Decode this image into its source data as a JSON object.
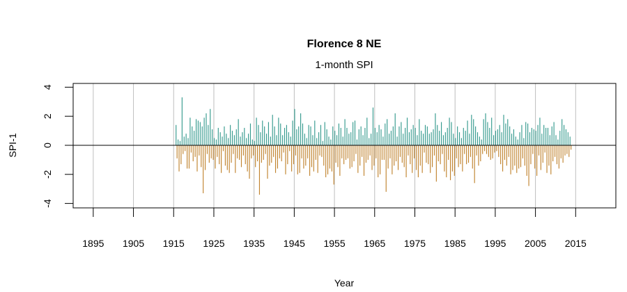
{
  "chart_data": {
    "type": "bar",
    "title": "Florence 8 NE",
    "subtitle": "1-month SPI",
    "xlabel": "Year",
    "ylabel": "SPI-1",
    "xlim": [
      1890,
      2025
    ],
    "ylim": [
      -4.3,
      4.3
    ],
    "x_ticks": [
      "1895",
      "1905",
      "1915",
      "1925",
      "1935",
      "1945",
      "1955",
      "1965",
      "1975",
      "1985",
      "1995",
      "2005",
      "2015"
    ],
    "y_ticks": [
      "-4",
      "-2",
      "0",
      "2",
      "4"
    ],
    "grid": "vertical",
    "colors": {
      "positive": "#359a8e",
      "negative": "#c0832e",
      "grid": "#bebebe",
      "zero_line": "#000000"
    },
    "values_per_year": 4,
    "series_by_year": {
      "1915": [
        0.0,
        0.0,
        1.4,
        -0.9
      ],
      "1916": [
        0.4,
        -1.8,
        0.3,
        -1.3
      ],
      "1917": [
        3.3,
        -0.6,
        0.6,
        -0.4
      ],
      "1918": [
        0.8,
        -1.6,
        0.5,
        -1.6
      ],
      "1919": [
        1.9,
        -0.5,
        1.3,
        -1.1
      ],
      "1920": [
        1.0,
        -0.8,
        1.8,
        -1.8
      ],
      "1921": [
        1.7,
        -0.7,
        1.6,
        -1.5
      ],
      "1922": [
        1.3,
        -3.3,
        1.9,
        -1.7
      ],
      "1923": [
        2.2,
        -0.6,
        1.4,
        -1.2
      ],
      "1924": [
        2.5,
        -0.9,
        1.1,
        -1.0
      ],
      "1925": [
        0.5,
        -1.6,
        0.4,
        -0.8
      ],
      "1926": [
        1.2,
        -1.3,
        0.9,
        -1.9
      ],
      "1927": [
        0.6,
        -0.4,
        1.3,
        -1.4
      ],
      "1928": [
        0.8,
        -1.7,
        0.5,
        -1.9
      ],
      "1929": [
        1.4,
        -1.2,
        1.0,
        -0.6
      ],
      "1930": [
        0.7,
        -1.9,
        1.1,
        -0.9
      ],
      "1931": [
        1.8,
        -1.0,
        0.6,
        -1.5
      ],
      "1932": [
        0.9,
        -0.7,
        1.2,
        -1.3
      ],
      "1933": [
        0.5,
        -1.8,
        0.8,
        -2.3
      ],
      "1934": [
        1.5,
        -0.9,
        0.4,
        -0.7
      ],
      "1935": [
        0.3,
        -1.5,
        1.9,
        -1.1
      ],
      "1936": [
        1.4,
        -3.4,
        0.9,
        -1.2
      ],
      "1937": [
        1.7,
        -1.0,
        1.3,
        -0.6
      ],
      "1938": [
        0.8,
        -2.3,
        1.6,
        -1.4
      ],
      "1939": [
        0.6,
        -1.2,
        2.1,
        -0.8
      ],
      "1940": [
        1.3,
        -1.9,
        0.7,
        -1.6
      ],
      "1941": [
        1.9,
        -0.9,
        1.5,
        -1.1
      ],
      "1942": [
        0.7,
        -0.5,
        1.2,
        -2.0
      ],
      "1943": [
        1.4,
        -1.3,
        0.9,
        -0.4
      ],
      "1944": [
        0.6,
        -1.8,
        1.7,
        -1.3
      ],
      "1945": [
        2.5,
        -0.7,
        1.1,
        -2.0
      ],
      "1946": [
        1.3,
        -1.9,
        2.2,
        -0.9
      ],
      "1947": [
        1.5,
        -1.6,
        0.8,
        -1.4
      ],
      "1948": [
        0.5,
        -0.9,
        1.4,
        -2.1
      ],
      "1949": [
        1.3,
        -1.5,
        0.7,
        -1.8
      ],
      "1950": [
        1.7,
        -1.0,
        0.5,
        -1.9
      ],
      "1951": [
        0.9,
        -0.7,
        1.4,
        -0.8
      ],
      "1952": [
        0.3,
        -1.4,
        1.6,
        -2.2
      ],
      "1953": [
        1.1,
        -2.0,
        0.6,
        -1.6
      ],
      "1954": [
        0.4,
        -1.8,
        1.3,
        -2.7
      ],
      "1955": [
        1.0,
        -1.2,
        0.7,
        -1.5
      ],
      "1956": [
        1.5,
        -2.1,
        1.2,
        -0.9
      ],
      "1957": [
        0.6,
        -1.3,
        1.8,
        -1.0
      ],
      "1958": [
        1.2,
        -0.9,
        0.8,
        -1.6
      ],
      "1959": [
        0.9,
        -1.5,
        1.6,
        -1.1
      ],
      "1960": [
        1.7,
        -0.6,
        0.4,
        -1.9
      ],
      "1961": [
        1.1,
        -1.4,
        1.3,
        -0.8
      ],
      "1962": [
        0.7,
        -2.1,
        1.2,
        -1.2
      ],
      "1963": [
        1.9,
        -1.0,
        0.5,
        -0.7
      ],
      "1964": [
        0.8,
        -1.7,
        2.6,
        -1.4
      ],
      "1965": [
        1.2,
        -0.9,
        0.9,
        -2.2
      ],
      "1966": [
        1.4,
        -2.0,
        1.1,
        -1.0
      ],
      "1967": [
        0.6,
        -1.0,
        1.5,
        -3.2
      ],
      "1968": [
        1.8,
        -1.6,
        0.8,
        -0.9
      ],
      "1969": [
        1.0,
        -2.0,
        1.3,
        -1.4
      ],
      "1970": [
        2.2,
        -1.1,
        0.6,
        -1.7
      ],
      "1971": [
        1.3,
        -0.8,
        1.6,
        -1.2
      ],
      "1972": [
        0.8,
        -1.5,
        1.2,
        -2.2
      ],
      "1973": [
        1.9,
        -0.7,
        0.9,
        -1.3
      ],
      "1974": [
        1.1,
        -1.9,
        1.4,
        -0.9
      ],
      "1975": [
        1.2,
        -1.7,
        0.7,
        -2.2
      ],
      "1976": [
        1.8,
        -1.4,
        1.0,
        -1.9
      ],
      "1977": [
        0.8,
        -0.5,
        1.4,
        -1.2
      ],
      "1978": [
        1.3,
        -1.3,
        0.8,
        -1.9
      ],
      "1979": [
        0.9,
        -1.5,
        1.1,
        -0.7
      ],
      "1980": [
        2.2,
        -2.5,
        1.4,
        -1.1
      ],
      "1981": [
        1.0,
        -1.3,
        1.6,
        -0.6
      ],
      "1982": [
        0.7,
        -1.8,
        0.9,
        -2.2
      ],
      "1983": [
        1.2,
        -1.0,
        1.9,
        -2.4
      ],
      "1984": [
        1.6,
        -1.8,
        0.8,
        -2.1
      ],
      "1985": [
        0.5,
        -0.9,
        1.3,
        -1.5
      ],
      "1986": [
        0.9,
        -1.3,
        0.5,
        -1.8
      ],
      "1987": [
        1.2,
        -0.6,
        1.0,
        -1.3
      ],
      "1988": [
        1.7,
        -1.2,
        0.8,
        -0.8
      ],
      "1989": [
        2.1,
        -1.6,
        1.8,
        -2.6
      ],
      "1990": [
        1.3,
        -0.7,
        0.9,
        -1.4
      ],
      "1991": [
        0.6,
        -1.1,
        0.4,
        -0.6
      ],
      "1992": [
        1.8,
        -0.4,
        2.2,
        -0.6
      ],
      "1993": [
        1.6,
        -0.8,
        1.2,
        -1.0
      ],
      "1994": [
        1.9,
        -0.9,
        0.7,
        -0.5
      ],
      "1995": [
        1.0,
        -0.4,
        1.1,
        -0.8
      ],
      "1996": [
        1.4,
        -1.3,
        0.9,
        -1.8
      ],
      "1997": [
        2.1,
        -1.0,
        1.5,
        -1.4
      ],
      "1998": [
        1.8,
        -0.8,
        1.3,
        -2.0
      ],
      "1999": [
        0.8,
        -1.7,
        1.1,
        -1.4
      ],
      "2000": [
        0.6,
        -1.9,
        0.4,
        -1.6
      ],
      "2001": [
        0.9,
        -1.5,
        1.4,
        -0.9
      ],
      "2002": [
        0.5,
        -1.4,
        1.6,
        -2.1
      ],
      "2003": [
        1.5,
        -2.8,
        0.9,
        -1.3
      ],
      "2004": [
        1.2,
        -0.6,
        1.1,
        -1.6
      ],
      "2005": [
        1.0,
        -2.1,
        1.4,
        -0.7
      ],
      "2006": [
        1.9,
        -1.7,
        0.8,
        -1.2
      ],
      "2007": [
        1.4,
        -0.5,
        1.2,
        -1.9
      ],
      "2008": [
        1.2,
        -1.4,
        0.7,
        -2.0
      ],
      "2009": [
        1.3,
        -1.1,
        1.6,
        -0.8
      ],
      "2010": [
        0.7,
        -1.3,
        0.4,
        -1.6
      ],
      "2011": [
        1.0,
        -0.9,
        1.8,
        -1.2
      ],
      "2012": [
        1.4,
        -0.7,
        1.1,
        -0.6
      ],
      "2013": [
        0.9,
        -0.8,
        0.6,
        -0.3
      ]
    }
  }
}
